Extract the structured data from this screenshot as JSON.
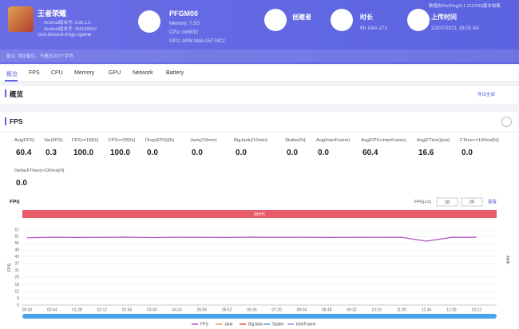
{
  "app": {
    "name": "王者荣耀",
    "version": "Android版本号: 3.65.1.6",
    "build": "Android版本号: 365018603",
    "package": "com.tencent.tmgp.sgame"
  },
  "device": {
    "model": "PFGM00",
    "memory": "Memory: 7.5G",
    "cpu": "CPU: mt6833",
    "gpu": "GPU: ARM Mali-G57 MC2"
  },
  "creator": {
    "label": "创建者"
  },
  "duration": {
    "label": "时长",
    "value": "0h 14m 27s"
  },
  "upload": {
    "label": "上传时间",
    "value": "22/07/2021 18:01:43"
  },
  "collector_note": "数据由PerfDog(5.1.210700)版本收集",
  "remark": "备注: 添加备注，不超过200个字符",
  "tabs": [
    "概览",
    "FPS",
    "CPU",
    "Memory",
    "GPU",
    "Network",
    "Battery"
  ],
  "overview": {
    "title": "概览",
    "export": "导出全部"
  },
  "fps_section": {
    "title": "FPS",
    "metrics": [
      {
        "label": "Avg(FPS)",
        "value": "60.4"
      },
      {
        "label": "Var(FPS)",
        "value": "0.3"
      },
      {
        "label": "FPS>=18[%]",
        "value": "100.0"
      },
      {
        "label": "FPS>=25[%]",
        "value": "100.0"
      },
      {
        "label": "Drop(FPS)[/h]",
        "value": "0.0"
      },
      {
        "label": "Jank(/10min)",
        "value": "0.0"
      },
      {
        "label": "BigJank(/10min)",
        "value": "0.0"
      },
      {
        "label": "Stutter[%]",
        "value": "0.0"
      },
      {
        "label": "Avg(InterFrame)",
        "value": "0.0"
      },
      {
        "label": "Avg(FPS+InterFrame)",
        "value": "60.4"
      },
      {
        "label": "Avg(FTime)[ms]",
        "value": "16.6"
      },
      {
        "label": "FTime>=100ms[%]",
        "value": "0.0"
      },
      {
        "label": "Delta(FTime)>100ms[/h]",
        "value": "0.0"
      }
    ]
  },
  "chart_data": {
    "type": "line",
    "title": "FPS",
    "threshold_label": "FPS(>=)",
    "thresholds": [
      18,
      25
    ],
    "reset": "重置",
    "band_label": "label1",
    "ylabel": "FPS",
    "y2label": "Jank",
    "categories": [
      "00:00",
      "00:44",
      "01:28",
      "02:12",
      "02:56",
      "03:40",
      "04:24",
      "05:08",
      "05:52",
      "06:36",
      "07:20",
      "08:04",
      "08:48",
      "09:32",
      "10:16",
      "11:00",
      "11:44",
      "12:28",
      "13:12"
    ],
    "series": [
      {
        "name": "FPS",
        "color": "#b04fc4",
        "values": [
          60,
          60.5,
          60.3,
          60.4,
          60.6,
          60.2,
          60.5,
          60.4,
          60.3,
          60.6,
          60.4,
          60.5,
          60.3,
          60.4,
          60.5,
          60.4,
          57,
          60.4,
          60.5
        ]
      }
    ],
    "legend": [
      {
        "name": "FPS",
        "color": "#b04fc4"
      },
      {
        "name": "Jank",
        "color": "#e8a040"
      },
      {
        "name": "BigJank",
        "color": "#e05050"
      },
      {
        "name": "Stutter",
        "color": "#4a9ae0"
      },
      {
        "name": "InterFrame",
        "color": "#8a8ae0"
      }
    ],
    "ylim": [
      0,
      67
    ],
    "yticks": [
      0,
      6,
      12,
      18,
      25,
      31,
      37,
      43,
      49,
      55,
      61,
      67
    ],
    "grid": true
  }
}
